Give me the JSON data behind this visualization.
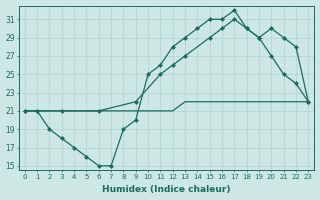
{
  "xlabel": "Humidex (Indice chaleur)",
  "bg_color": "#cde8e4",
  "line_color": "#1a6b5a",
  "grid_color": "#b8d8d4",
  "xlim": [
    -0.5,
    23.5
  ],
  "ylim": [
    14.5,
    32.5
  ],
  "yticks": [
    15,
    17,
    19,
    21,
    23,
    25,
    27,
    29,
    31
  ],
  "xticks": [
    0,
    1,
    2,
    3,
    4,
    5,
    6,
    7,
    8,
    9,
    10,
    11,
    12,
    13,
    14,
    15,
    16,
    17,
    18,
    19,
    20,
    21,
    22,
    23
  ],
  "line1_x": [
    0,
    1,
    2,
    3,
    4,
    5,
    6,
    7,
    8,
    9,
    10,
    11,
    12,
    13,
    14,
    15,
    16,
    17,
    18,
    19,
    20,
    21,
    22,
    23
  ],
  "line1_y": [
    21,
    21,
    19,
    18,
    17,
    16,
    15,
    15,
    19,
    20,
    25,
    26,
    28,
    29,
    30,
    31,
    31,
    32,
    30,
    29,
    27,
    25,
    24,
    22
  ],
  "line2_x": [
    0,
    1,
    2,
    3,
    4,
    5,
    6,
    7,
    8,
    9,
    10,
    11,
    12,
    13,
    14,
    15,
    16,
    17,
    18,
    19,
    20,
    21,
    22,
    23
  ],
  "line2_y": [
    21,
    21,
    21,
    21,
    21,
    21,
    21,
    21,
    21,
    21,
    21,
    21,
    21,
    22,
    22,
    22,
    22,
    22,
    22,
    22,
    22,
    22,
    22,
    22
  ],
  "line3_x": [
    0,
    3,
    6,
    9,
    11,
    12,
    13,
    15,
    16,
    17,
    18,
    19,
    20,
    21,
    22,
    23
  ],
  "line3_y": [
    21,
    21,
    21,
    22,
    25,
    26,
    27,
    29,
    30,
    31,
    30,
    29,
    30,
    29,
    28,
    22
  ]
}
